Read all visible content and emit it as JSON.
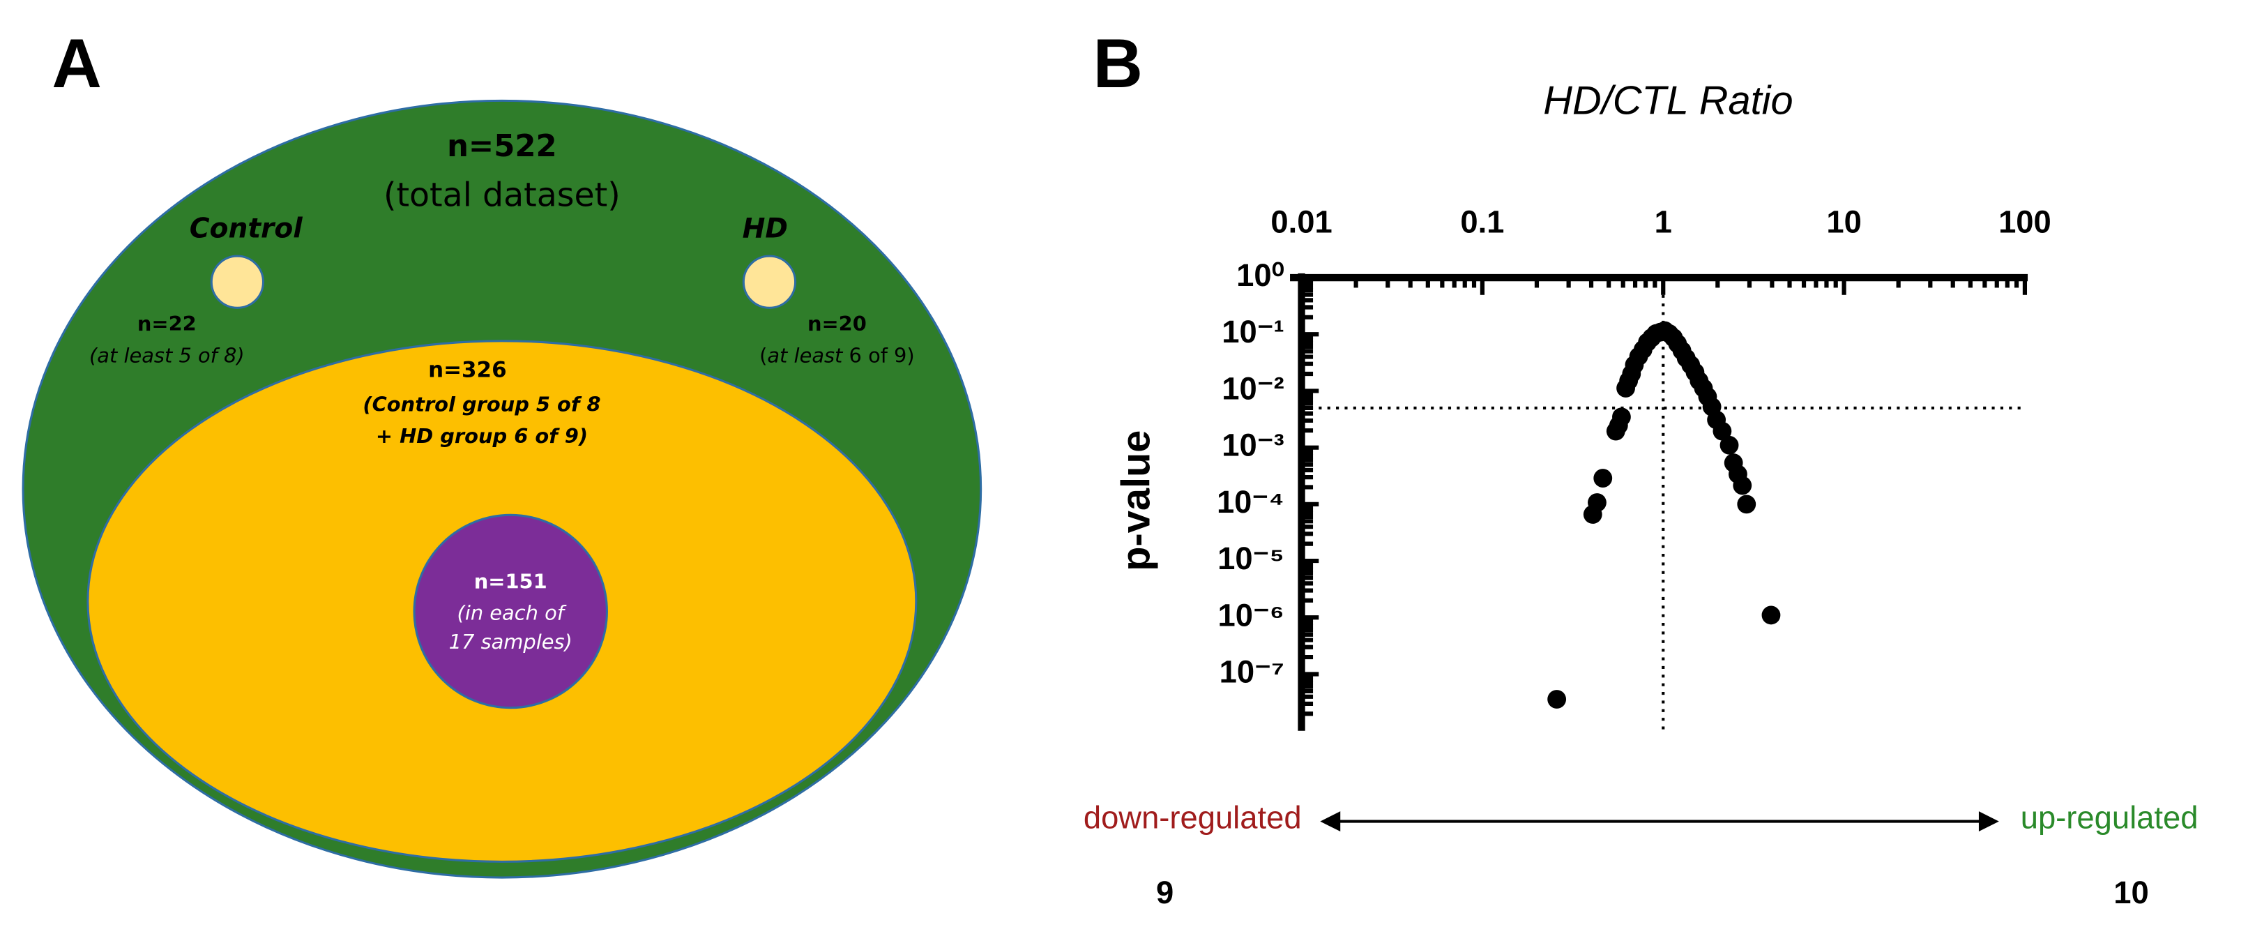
{
  "panel_a": {
    "label": "A",
    "total": {
      "count": "n=522",
      "desc": "(total dataset)"
    },
    "control": {
      "name": "Control",
      "count": "n=22",
      "desc": "(at least 5 of 8)"
    },
    "hd": {
      "name": "HD",
      "count": "n=20",
      "desc_open": "(",
      "desc_italic": "at least",
      "desc_rest": " 6 of 9)"
    },
    "both": {
      "count": "n=326",
      "desc_1": "(Control group 5 of 8",
      "desc_2": "+ HD group 6 of 9)"
    },
    "all": {
      "count": "n=151",
      "desc_1": "(in each of",
      "desc_2": "17 samples)"
    }
  },
  "chart_data": {
    "type": "scatter",
    "panel_label": "B",
    "title": "HD/CTL Ratio",
    "y_label": "p-value",
    "x_log": true,
    "y_log": true,
    "minor_ticks": true,
    "xlim": [
      0.01,
      100
    ],
    "xticks": [
      0.01,
      0.1,
      1,
      10,
      100
    ],
    "ylim": [
      1e-08,
      1
    ],
    "yticks": [
      {
        "value": 1,
        "label": "10⁰"
      },
      {
        "value": 0.1,
        "label": "10⁻¹"
      },
      {
        "value": 0.01,
        "label": "10⁻²"
      },
      {
        "value": 0.001,
        "label": "10⁻³"
      },
      {
        "value": 0.0001,
        "label": "10⁻⁴"
      },
      {
        "value": 1e-05,
        "label": "10⁻⁵"
      },
      {
        "value": 1e-06,
        "label": "10⁻⁶"
      },
      {
        "value": 1e-07,
        "label": "10⁻⁷"
      }
    ],
    "hline": 0.005,
    "vline": 1,
    "series": [
      {
        "color": "#000000",
        "x": [
          0.408,
          0.431,
          0.464,
          0.547,
          0.567,
          0.588,
          0.621,
          0.644,
          0.668,
          0.693,
          0.732,
          0.774,
          0.818,
          0.864,
          0.912,
          0.964,
          1.02,
          1.08,
          1.14,
          1.2,
          1.27,
          1.34,
          1.42,
          1.5,
          1.58,
          1.67,
          1.76,
          1.86,
          1.97,
          2.12,
          2.32,
          2.45,
          2.59,
          2.74,
          2.89,
          3.95,
          0.258
        ],
        "values": [
          6.6e-05,
          0.000107,
          0.000288,
          0.00195,
          0.00246,
          0.00347,
          0.0112,
          0.0151,
          0.02,
          0.0288,
          0.0407,
          0.0537,
          0.0724,
          0.0871,
          0.103,
          0.109,
          0.116,
          0.103,
          0.0871,
          0.0684,
          0.0513,
          0.038,
          0.0288,
          0.0214,
          0.0151,
          0.0112,
          0.00794,
          0.00525,
          0.00309,
          0.00195,
          0.0011,
          0.000537,
          0.000339,
          0.000214,
          0.0001,
          1.1e-06,
          3.6e-08
        ]
      }
    ],
    "left_annotation": {
      "text": "down-regulated",
      "count": "9",
      "color": "#a01c1c"
    },
    "right_annotation": {
      "text": "up-regulated",
      "count": "10",
      "color": "#2a8a2a"
    }
  }
}
